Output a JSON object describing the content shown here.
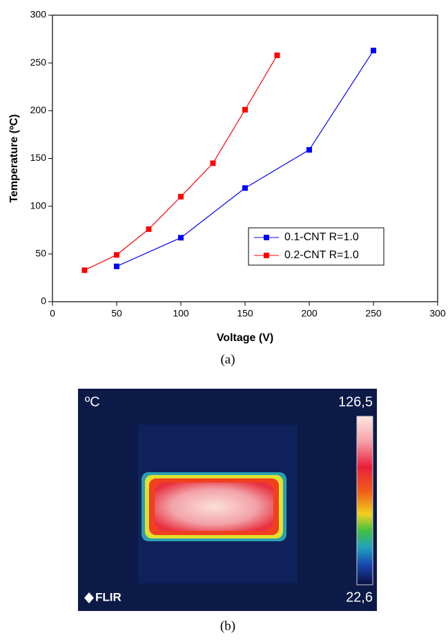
{
  "chart_data": {
    "type": "line",
    "x_label": "Voltage (V)",
    "y_label": "Temperature (ºC)",
    "xlim": [
      0,
      300
    ],
    "xticks": [
      0,
      50,
      100,
      150,
      200,
      250,
      300
    ],
    "ylim": [
      0,
      300
    ],
    "yticks": [
      0,
      50,
      100,
      150,
      200,
      250,
      300
    ],
    "legend": "lower right",
    "series": [
      {
        "name": "0.1-CNT R=1.0",
        "color": "#0000ff",
        "x": [
          50,
          100,
          150,
          200,
          250
        ],
        "values": [
          37,
          67,
          119,
          159,
          263
        ]
      },
      {
        "name": "0.2-CNT R=1.0",
        "color": "#ff0000",
        "x": [
          25,
          50,
          75,
          100,
          125,
          150,
          175
        ],
        "values": [
          33,
          49,
          76,
          110,
          145,
          201,
          258
        ]
      }
    ]
  },
  "captions": [
    "(a)",
    "(b)"
  ],
  "thermal_image": {
    "unit": "ºC",
    "max_label": "126,5",
    "min_label": "22,6",
    "brand": "FLIR"
  }
}
